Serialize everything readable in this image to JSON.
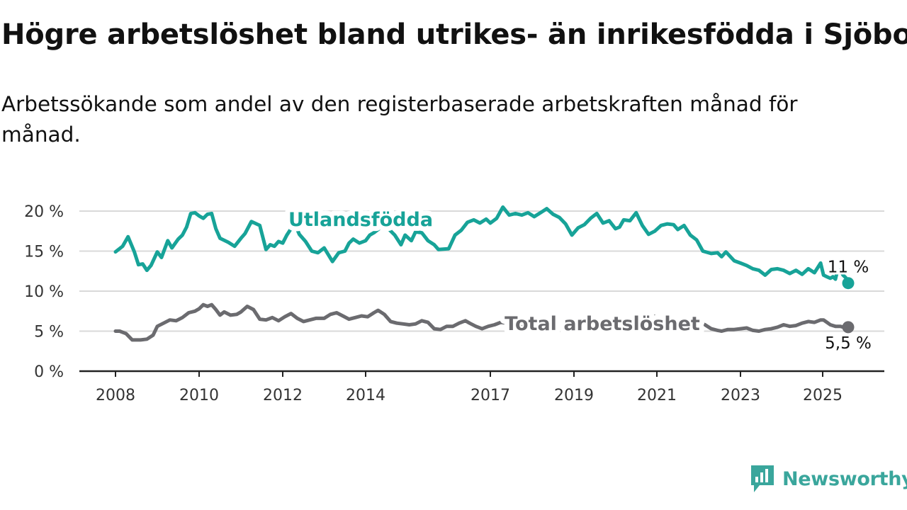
{
  "header": {
    "title": "Högre arbetslöshet bland utrikes- än inrikesfödda i Sjöbo",
    "subtitle": "Arbetssökande som andel av den registerbaserade arbetskraften månad för månad."
  },
  "brand": {
    "name": "Newsworthy",
    "icon": "newsworthy-logo-icon",
    "color": "#3aa69c"
  },
  "chart_data": {
    "type": "line",
    "title": "Högre arbetslöshet bland utrikes- än inrikesfödda i Sjöbo",
    "subtitle": "Arbetssökande som andel av den registerbaserade arbetskraften månad för månad.",
    "xlabel": "",
    "ylabel": "",
    "xlim": [
      2008.0,
      2025.9
    ],
    "ylim": [
      0,
      20
    ],
    "y_ticks": [
      0,
      5,
      10,
      15,
      20
    ],
    "y_tick_labels": [
      "0 %",
      "5 %",
      "10 %",
      "15 %",
      "20 %"
    ],
    "x_ticks": [
      2008,
      2010,
      2012,
      2014,
      2017,
      2019,
      2021,
      2023,
      2025
    ],
    "x_tick_labels": [
      "2008",
      "2010",
      "2012",
      "2014",
      "2017",
      "2019",
      "2021",
      "2023",
      "2025"
    ],
    "grid": true,
    "legend": "inline labels",
    "series": [
      {
        "name": "Utlandsfödda",
        "color": "#17a398",
        "end_label": "11 %",
        "points": [
          [
            2008.0,
            14.9
          ],
          [
            2008.17,
            15.6
          ],
          [
            2008.3,
            16.8
          ],
          [
            2008.45,
            14.9
          ],
          [
            2008.55,
            13.3
          ],
          [
            2008.65,
            13.4
          ],
          [
            2008.75,
            12.6
          ],
          [
            2008.85,
            13.2
          ],
          [
            2009.0,
            14.9
          ],
          [
            2009.1,
            14.2
          ],
          [
            2009.25,
            16.3
          ],
          [
            2009.35,
            15.4
          ],
          [
            2009.5,
            16.5
          ],
          [
            2009.6,
            17.0
          ],
          [
            2009.7,
            18.0
          ],
          [
            2009.8,
            19.7
          ],
          [
            2009.9,
            19.8
          ],
          [
            2010.0,
            19.4
          ],
          [
            2010.1,
            19.1
          ],
          [
            2010.2,
            19.6
          ],
          [
            2010.3,
            19.7
          ],
          [
            2010.4,
            17.8
          ],
          [
            2010.5,
            16.6
          ],
          [
            2010.7,
            16.1
          ],
          [
            2010.85,
            15.6
          ],
          [
            2011.0,
            16.6
          ],
          [
            2011.1,
            17.2
          ],
          [
            2011.25,
            18.7
          ],
          [
            2011.45,
            18.2
          ],
          [
            2011.6,
            15.2
          ],
          [
            2011.7,
            15.8
          ],
          [
            2011.8,
            15.6
          ],
          [
            2011.9,
            16.2
          ],
          [
            2012.0,
            16.0
          ],
          [
            2012.1,
            17.0
          ],
          [
            2012.2,
            17.8
          ],
          [
            2012.3,
            18.3
          ],
          [
            2012.4,
            17.1
          ],
          [
            2012.55,
            16.2
          ],
          [
            2012.7,
            15.0
          ],
          [
            2012.85,
            14.8
          ],
          [
            2013.0,
            15.4
          ],
          [
            2013.2,
            13.7
          ],
          [
            2013.35,
            14.8
          ],
          [
            2013.5,
            15.0
          ],
          [
            2013.6,
            16.0
          ],
          [
            2013.7,
            16.5
          ],
          [
            2013.85,
            16.0
          ],
          [
            2014.0,
            16.3
          ],
          [
            2014.1,
            17.0
          ],
          [
            2014.2,
            17.3
          ],
          [
            2014.45,
            18.3
          ],
          [
            2014.7,
            17.0
          ],
          [
            2014.85,
            15.8
          ],
          [
            2014.95,
            17.0
          ],
          [
            2015.1,
            16.3
          ],
          [
            2015.2,
            17.4
          ],
          [
            2015.35,
            17.3
          ],
          [
            2015.5,
            16.3
          ],
          [
            2015.65,
            15.8
          ],
          [
            2015.75,
            15.2
          ],
          [
            2016.0,
            15.3
          ],
          [
            2016.15,
            17.0
          ],
          [
            2016.3,
            17.6
          ],
          [
            2016.45,
            18.6
          ],
          [
            2016.6,
            18.9
          ],
          [
            2016.75,
            18.5
          ],
          [
            2016.9,
            19.0
          ],
          [
            2017.0,
            18.5
          ],
          [
            2017.15,
            19.1
          ],
          [
            2017.3,
            20.5
          ],
          [
            2017.45,
            19.5
          ],
          [
            2017.6,
            19.7
          ],
          [
            2017.75,
            19.5
          ],
          [
            2017.9,
            19.8
          ],
          [
            2018.05,
            19.3
          ],
          [
            2018.2,
            19.8
          ],
          [
            2018.35,
            20.3
          ],
          [
            2018.5,
            19.6
          ],
          [
            2018.65,
            19.2
          ],
          [
            2018.8,
            18.4
          ],
          [
            2018.95,
            17.0
          ],
          [
            2019.1,
            17.9
          ],
          [
            2019.25,
            18.3
          ],
          [
            2019.4,
            19.1
          ],
          [
            2019.55,
            19.7
          ],
          [
            2019.7,
            18.5
          ],
          [
            2019.85,
            18.8
          ],
          [
            2020.0,
            17.8
          ],
          [
            2020.1,
            18.0
          ],
          [
            2020.2,
            18.9
          ],
          [
            2020.35,
            18.8
          ],
          [
            2020.5,
            19.8
          ],
          [
            2020.65,
            18.2
          ],
          [
            2020.8,
            17.1
          ],
          [
            2020.95,
            17.5
          ],
          [
            2021.1,
            18.2
          ],
          [
            2021.25,
            18.4
          ],
          [
            2021.4,
            18.3
          ],
          [
            2021.5,
            17.7
          ],
          [
            2021.65,
            18.2
          ],
          [
            2021.8,
            17.0
          ],
          [
            2021.95,
            16.4
          ],
          [
            2022.1,
            15.0
          ],
          [
            2022.3,
            14.7
          ],
          [
            2022.45,
            14.8
          ],
          [
            2022.55,
            14.3
          ],
          [
            2022.65,
            14.9
          ],
          [
            2022.85,
            13.8
          ],
          [
            2023.0,
            13.5
          ],
          [
            2023.15,
            13.2
          ],
          [
            2023.3,
            12.8
          ],
          [
            2023.45,
            12.6
          ],
          [
            2023.6,
            12.0
          ],
          [
            2023.75,
            12.7
          ],
          [
            2023.9,
            12.8
          ],
          [
            2024.05,
            12.6
          ],
          [
            2024.2,
            12.2
          ],
          [
            2024.35,
            12.6
          ],
          [
            2024.5,
            12.1
          ],
          [
            2024.65,
            12.8
          ],
          [
            2024.8,
            12.3
          ],
          [
            2024.95,
            13.5
          ],
          [
            2025.05,
            12.0
          ],
          [
            2025.25,
            11.8
          ],
          [
            2025.45,
            11.6
          ],
          [
            2025.6,
            11.8
          ],
          [
            2025.75,
            11.5
          ],
          [
            2025.85,
            12.4
          ],
          [
            2026.05,
            12.6
          ],
          [
            2026.2,
            12.0
          ],
          [
            2026.35,
            11.7
          ],
          [
            2026.5,
            11.0
          ]
        ]
      },
      {
        "name": "Total arbetslöshet",
        "color": "#6b6b6f",
        "end_label": "5,5 %",
        "points": [
          [
            2008.0,
            5.0
          ],
          [
            2008.1,
            5.0
          ],
          [
            2008.25,
            4.7
          ],
          [
            2008.4,
            3.9
          ],
          [
            2008.6,
            3.9
          ],
          [
            2008.75,
            4.0
          ],
          [
            2008.9,
            4.5
          ],
          [
            2009.0,
            5.6
          ],
          [
            2009.15,
            6.0
          ],
          [
            2009.3,
            6.4
          ],
          [
            2009.45,
            6.3
          ],
          [
            2009.6,
            6.7
          ],
          [
            2009.75,
            7.3
          ],
          [
            2009.9,
            7.5
          ],
          [
            2010.0,
            7.8
          ],
          [
            2010.1,
            8.3
          ],
          [
            2010.2,
            8.1
          ],
          [
            2010.3,
            8.3
          ],
          [
            2010.4,
            7.7
          ],
          [
            2010.5,
            7.0
          ],
          [
            2010.6,
            7.4
          ],
          [
            2010.75,
            7.0
          ],
          [
            2010.9,
            7.1
          ],
          [
            2011.0,
            7.4
          ],
          [
            2011.15,
            8.1
          ],
          [
            2011.3,
            7.7
          ],
          [
            2011.45,
            6.5
          ],
          [
            2011.6,
            6.4
          ],
          [
            2011.75,
            6.7
          ],
          [
            2011.9,
            6.3
          ],
          [
            2012.05,
            6.8
          ],
          [
            2012.2,
            7.2
          ],
          [
            2012.35,
            6.6
          ],
          [
            2012.5,
            6.2
          ],
          [
            2012.65,
            6.4
          ],
          [
            2012.8,
            6.6
          ],
          [
            2013.0,
            6.6
          ],
          [
            2013.15,
            7.1
          ],
          [
            2013.3,
            7.3
          ],
          [
            2013.45,
            6.9
          ],
          [
            2013.6,
            6.5
          ],
          [
            2013.75,
            6.7
          ],
          [
            2013.9,
            6.9
          ],
          [
            2014.05,
            6.8
          ],
          [
            2014.2,
            7.3
          ],
          [
            2014.3,
            7.6
          ],
          [
            2014.45,
            7.1
          ],
          [
            2014.6,
            6.2
          ],
          [
            2014.75,
            6.0
          ],
          [
            2014.9,
            5.9
          ],
          [
            2015.05,
            5.8
          ],
          [
            2015.2,
            5.9
          ],
          [
            2015.35,
            6.3
          ],
          [
            2015.5,
            6.1
          ],
          [
            2015.65,
            5.3
          ],
          [
            2015.8,
            5.2
          ],
          [
            2015.95,
            5.6
          ],
          [
            2016.1,
            5.6
          ],
          [
            2016.25,
            6.0
          ],
          [
            2016.4,
            6.3
          ],
          [
            2016.5,
            6.0
          ],
          [
            2016.65,
            5.6
          ],
          [
            2016.8,
            5.3
          ],
          [
            2016.95,
            5.6
          ],
          [
            2017.1,
            5.8
          ],
          [
            2017.25,
            6.1
          ],
          [
            2017.4,
            6.0
          ],
          [
            2017.55,
            6.0
          ],
          [
            2017.7,
            5.5
          ],
          [
            2017.85,
            5.6
          ],
          [
            2018.0,
            5.6
          ],
          [
            2018.15,
            5.7
          ],
          [
            2018.3,
            5.8
          ],
          [
            2018.45,
            5.6
          ],
          [
            2018.6,
            5.5
          ],
          [
            2018.75,
            5.6
          ],
          [
            2018.9,
            5.8
          ],
          [
            2019.05,
            5.9
          ],
          [
            2019.2,
            6.0
          ],
          [
            2019.35,
            6.2
          ],
          [
            2019.5,
            6.0
          ],
          [
            2019.65,
            6.0
          ],
          [
            2019.8,
            5.9
          ],
          [
            2019.95,
            6.0
          ],
          [
            2020.1,
            6.4
          ],
          [
            2020.25,
            6.6
          ],
          [
            2020.4,
            6.4
          ],
          [
            2020.55,
            6.7
          ],
          [
            2020.7,
            6.8
          ],
          [
            2020.85,
            6.9
          ],
          [
            2021.0,
            6.8
          ],
          [
            2021.15,
            6.6
          ],
          [
            2021.3,
            6.4
          ],
          [
            2021.45,
            6.2
          ],
          [
            2021.6,
            6.1
          ],
          [
            2021.75,
            6.0
          ],
          [
            2021.9,
            6.1
          ],
          [
            2022.05,
            6.0
          ],
          [
            2022.15,
            5.8
          ],
          [
            2022.3,
            5.3
          ],
          [
            2022.45,
            5.1
          ],
          [
            2022.55,
            5.0
          ],
          [
            2022.7,
            5.2
          ],
          [
            2022.85,
            5.2
          ],
          [
            2023.0,
            5.3
          ],
          [
            2023.15,
            5.4
          ],
          [
            2023.3,
            5.1
          ],
          [
            2023.45,
            5.0
          ],
          [
            2023.6,
            5.2
          ],
          [
            2023.75,
            5.3
          ],
          [
            2023.9,
            5.5
          ],
          [
            2024.05,
            5.8
          ],
          [
            2024.2,
            5.6
          ],
          [
            2024.35,
            5.7
          ],
          [
            2024.5,
            6.0
          ],
          [
            2024.65,
            6.2
          ],
          [
            2024.8,
            6.1
          ],
          [
            2024.95,
            6.4
          ],
          [
            2025.05,
            6.4
          ],
          [
            2025.25,
            6.1
          ],
          [
            2025.45,
            5.8
          ],
          [
            2025.6,
            5.7
          ],
          [
            2025.75,
            5.6
          ],
          [
            2025.85,
            5.6
          ],
          [
            2026.05,
            5.6
          ],
          [
            2026.2,
            5.5
          ],
          [
            2026.35,
            5.5
          ],
          [
            2026.5,
            5.5
          ]
        ]
      }
    ]
  }
}
